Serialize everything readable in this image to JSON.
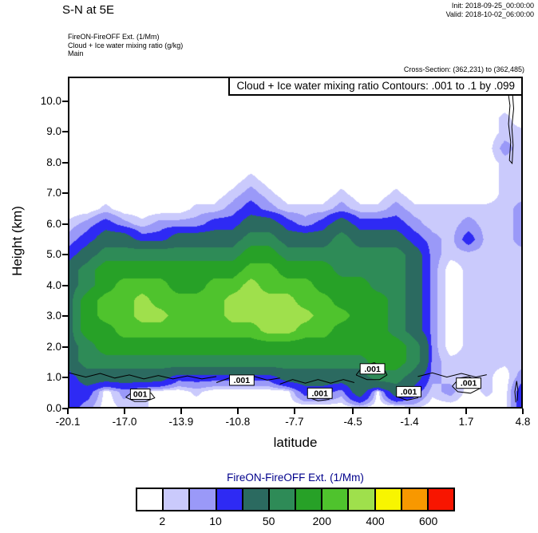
{
  "header": {
    "title": "S-N at 5E",
    "init": "Init: 2018-09-25_00:00:00",
    "valid": "Valid: 2018-10-02_06:00:00",
    "model_lines": [
      "FireON-FireOFF Ext.  (1/Mm)",
      "Cloud + Ice water mixing ratio  (g/kg)",
      "Main"
    ],
    "cross_section": "Cross-Section: (362,231) to (362,485)"
  },
  "plot": {
    "inner_title": "Cloud + Ice water mixing ratio Contours: .001 to .1 by .099",
    "ylabel": "Height (km)",
    "xlabel": "latitude",
    "y_ticks": [
      "10.0",
      "9.0",
      "8.0",
      "7.0",
      "6.0",
      "5.0",
      "4.0",
      "3.0",
      "2.0",
      "1.0",
      "0.0"
    ],
    "x_ticks": [
      "-20.1",
      "-17.0",
      "-13.9",
      "-10.8",
      "-7.7",
      "-4.5",
      "-1.4",
      "1.7",
      "4.8"
    ]
  },
  "colorbar": {
    "title": "FireON-FireOFF Ext.  (1/Mm)",
    "title_color": "#00008b",
    "colors": [
      "#ffffff",
      "#cacafc",
      "#9a99f8",
      "#2e2af4",
      "#2b6a60",
      "#2e8b57",
      "#27a127",
      "#4fc32d",
      "#9fe04c",
      "#f8f500",
      "#f89800",
      "#f81500"
    ],
    "labels": [
      {
        "text": "2",
        "edge": 1
      },
      {
        "text": "10",
        "edge": 3
      },
      {
        "text": "50",
        "edge": 5
      },
      {
        "text": "200",
        "edge": 7
      },
      {
        "text": "400",
        "edge": 9
      },
      {
        "text": "600",
        "edge": 11
      }
    ]
  },
  "chart_data": {
    "type": "filled_contour",
    "title": "Cloud + Ice water mixing ratio Contours: .001 to .1 by .099",
    "field_name": "FireON-FireOFF Ext.",
    "field_units": "1/Mm",
    "xlabel": "latitude",
    "ylabel": "Height (km)",
    "xlim": [
      -20.1,
      4.8
    ],
    "ylim": [
      0,
      10.8
    ],
    "levels": [
      2,
      5,
      10,
      20,
      50,
      100,
      200,
      300,
      400,
      500,
      600
    ],
    "level_colors": [
      "#ffffff",
      "#cacafc",
      "#9a99f8",
      "#2e2af4",
      "#2b6a60",
      "#2e8b57",
      "#27a127",
      "#4fc32d",
      "#9fe04c",
      "#f8f500",
      "#f89800",
      "#f81500"
    ],
    "x": [
      -20.1,
      -19.1,
      -18.1,
      -17.1,
      -16.1,
      -15.1,
      -14.1,
      -13.1,
      -12.1,
      -11.1,
      -10.1,
      -9.1,
      -8.1,
      -7.1,
      -6.1,
      -5.1,
      -4.1,
      -3.1,
      -2.1,
      -1.1,
      -0.1,
      0.9,
      1.9,
      2.9,
      3.9,
      4.8
    ],
    "y": [
      0,
      0.5,
      1,
      1.5,
      2,
      2.5,
      3,
      3.5,
      4,
      4.5,
      5,
      5.5,
      6,
      6.5,
      7,
      7.5,
      8,
      8.5,
      9,
      9.5,
      10,
      10.5
    ],
    "values": [
      [
        14,
        7,
        0,
        3,
        3,
        0,
        0,
        0,
        0,
        0,
        0,
        0,
        0,
        0,
        0,
        0,
        3,
        0,
        0,
        3,
        0,
        0,
        0,
        0,
        0,
        14
      ],
      [
        14,
        14,
        0,
        7,
        3,
        0,
        0,
        3,
        0,
        0,
        0,
        0,
        0,
        14,
        14,
        7,
        30,
        0,
        30,
        14,
        3,
        7,
        0,
        3,
        0,
        14
      ],
      [
        14,
        30,
        30,
        30,
        30,
        30,
        14,
        14,
        14,
        14,
        14,
        14,
        30,
        30,
        30,
        30,
        30,
        70,
        70,
        30,
        7,
        3,
        3,
        3,
        0,
        7
      ],
      [
        30,
        70,
        70,
        70,
        70,
        70,
        70,
        70,
        70,
        70,
        70,
        70,
        70,
        70,
        70,
        70,
        70,
        140,
        140,
        70,
        7,
        3,
        3,
        3,
        3,
        3
      ],
      [
        30,
        70,
        140,
        140,
        140,
        140,
        140,
        140,
        140,
        140,
        140,
        140,
        140,
        140,
        140,
        140,
        140,
        140,
        140,
        70,
        7,
        0,
        3,
        3,
        3,
        3
      ],
      [
        30,
        140,
        140,
        250,
        250,
        250,
        250,
        250,
        250,
        250,
        250,
        340,
        340,
        250,
        250,
        140,
        140,
        140,
        70,
        30,
        7,
        0,
        3,
        3,
        3,
        3
      ],
      [
        30,
        140,
        250,
        250,
        340,
        340,
        250,
        250,
        250,
        340,
        340,
        340,
        340,
        340,
        250,
        250,
        140,
        140,
        70,
        30,
        7,
        0,
        3,
        3,
        3,
        3
      ],
      [
        30,
        140,
        250,
        250,
        340,
        250,
        250,
        250,
        250,
        340,
        340,
        340,
        340,
        250,
        250,
        140,
        140,
        140,
        70,
        30,
        7,
        0,
        3,
        3,
        3,
        3
      ],
      [
        30,
        70,
        140,
        250,
        250,
        250,
        140,
        140,
        250,
        250,
        340,
        250,
        250,
        250,
        140,
        140,
        140,
        70,
        70,
        30,
        7,
        0,
        3,
        3,
        3,
        3
      ],
      [
        30,
        70,
        140,
        140,
        140,
        140,
        140,
        140,
        140,
        140,
        250,
        250,
        140,
        140,
        140,
        70,
        70,
        70,
        70,
        30,
        7,
        0,
        3,
        3,
        3,
        3
      ],
      [
        14,
        30,
        70,
        70,
        70,
        70,
        70,
        70,
        70,
        70,
        140,
        140,
        70,
        70,
        70,
        70,
        70,
        70,
        70,
        30,
        7,
        3,
        3,
        3,
        3,
        3
      ],
      [
        7,
        14,
        30,
        30,
        14,
        14,
        30,
        30,
        30,
        30,
        70,
        70,
        30,
        30,
        30,
        70,
        30,
        30,
        30,
        14,
        7,
        3,
        14,
        3,
        3,
        7
      ],
      [
        3,
        7,
        14,
        7,
        3,
        7,
        7,
        7,
        14,
        14,
        30,
        30,
        14,
        7,
        14,
        30,
        14,
        14,
        14,
        7,
        3,
        3,
        7,
        3,
        3,
        7
      ],
      [
        0,
        0,
        3,
        0,
        0,
        0,
        0,
        3,
        3,
        7,
        14,
        7,
        3,
        3,
        3,
        7,
        3,
        3,
        7,
        3,
        3,
        3,
        3,
        3,
        3,
        7
      ],
      [
        0,
        0,
        0,
        0,
        0,
        0,
        0,
        0,
        0,
        3,
        7,
        3,
        0,
        0,
        0,
        3,
        0,
        0,
        3,
        0,
        0,
        0,
        0,
        0,
        3,
        3
      ],
      [
        0,
        0,
        0,
        0,
        0,
        0,
        0,
        0,
        0,
        0,
        3,
        0,
        0,
        0,
        0,
        0,
        0,
        0,
        0,
        0,
        0,
        0,
        0,
        0,
        3,
        3
      ],
      [
        0,
        0,
        0,
        0,
        0,
        0,
        0,
        0,
        0,
        0,
        0,
        0,
        0,
        0,
        0,
        0,
        0,
        0,
        0,
        0,
        0,
        0,
        0,
        0,
        3,
        3
      ],
      [
        0,
        0,
        0,
        0,
        0,
        0,
        0,
        0,
        0,
        0,
        0,
        0,
        0,
        0,
        0,
        0,
        0,
        0,
        0,
        0,
        0,
        0,
        0,
        0,
        7,
        3
      ],
      [
        0,
        0,
        0,
        0,
        0,
        0,
        0,
        0,
        0,
        0,
        0,
        0,
        0,
        0,
        0,
        0,
        0,
        0,
        0,
        0,
        0,
        0,
        0,
        0,
        3,
        3
      ],
      [
        0,
        0,
        0,
        0,
        0,
        0,
        0,
        0,
        0,
        0,
        0,
        0,
        0,
        0,
        0,
        0,
        0,
        0,
        0,
        0,
        0,
        0,
        0,
        0,
        3,
        0
      ],
      [
        0,
        0,
        0,
        0,
        0,
        0,
        0,
        0,
        0,
        0,
        0,
        0,
        0,
        0,
        0,
        0,
        0,
        0,
        0,
        0,
        0,
        0,
        0,
        0,
        0,
        0
      ],
      [
        0,
        0,
        0,
        0,
        0,
        0,
        0,
        0,
        0,
        0,
        0,
        0,
        0,
        0,
        0,
        0,
        0,
        0,
        0,
        0,
        0,
        0,
        0,
        0,
        0,
        0
      ]
    ],
    "contours": {
      "level": 0.001,
      "units": "g/kg",
      "lines": [
        [
          [
            -20.1,
            1.12
          ],
          [
            -19.2,
            0.98
          ],
          [
            -18.4,
            1.1
          ],
          [
            -17.6,
            0.95
          ],
          [
            -16.8,
            1.05
          ],
          [
            -16.0,
            0.92
          ],
          [
            -15.2,
            1.03
          ],
          [
            -14.4,
            0.92
          ],
          [
            -13.6,
            1.02
          ],
          [
            -12.8,
            0.92
          ],
          [
            -12.0,
            1.0
          ]
        ],
        [
          [
            -17.0,
            0.32
          ],
          [
            -16.6,
            0.5
          ],
          [
            -16.1,
            0.55
          ],
          [
            -15.6,
            0.45
          ],
          [
            -15.4,
            0.3
          ],
          [
            -15.9,
            0.18
          ],
          [
            -16.5,
            0.18
          ],
          [
            -17.0,
            0.32
          ]
        ],
        [
          [
            -12.0,
            0.8
          ],
          [
            -11.3,
            0.95
          ],
          [
            -10.6,
            0.85
          ],
          [
            -9.9,
            1.0
          ],
          [
            -9.2,
            0.88
          ],
          [
            -8.5,
            0.95
          ]
        ],
        [
          [
            -8.5,
            0.75
          ],
          [
            -7.8,
            0.9
          ],
          [
            -7.1,
            0.78
          ],
          [
            -6.4,
            0.9
          ],
          [
            -5.7,
            0.78
          ],
          [
            -5.0,
            0.9
          ],
          [
            -4.4,
            0.8
          ]
        ],
        [
          [
            -7.0,
            0.33
          ],
          [
            -6.6,
            0.52
          ],
          [
            -6.1,
            0.56
          ],
          [
            -5.7,
            0.42
          ],
          [
            -5.8,
            0.25
          ],
          [
            -6.4,
            0.2
          ],
          [
            -7.0,
            0.33
          ]
        ],
        [
          [
            -4.3,
            1.05
          ],
          [
            -3.9,
            1.35
          ],
          [
            -3.3,
            1.45
          ],
          [
            -2.8,
            1.3
          ],
          [
            -2.6,
            1.05
          ],
          [
            -3.0,
            0.9
          ],
          [
            -3.7,
            0.9
          ],
          [
            -4.3,
            1.05
          ]
        ],
        [
          [
            -2.1,
            0.35
          ],
          [
            -1.7,
            0.6
          ],
          [
            -1.2,
            0.65
          ],
          [
            -0.8,
            0.5
          ],
          [
            -0.9,
            0.3
          ],
          [
            -1.5,
            0.22
          ],
          [
            -2.1,
            0.35
          ]
        ],
        [
          [
            -0.9,
            1.0
          ],
          [
            -0.1,
            1.12
          ],
          [
            0.7,
            0.98
          ],
          [
            1.5,
            1.1
          ],
          [
            2.3,
            0.98
          ],
          [
            2.9,
            1.06
          ]
        ],
        [
          [
            1.0,
            0.68
          ],
          [
            1.4,
            0.95
          ],
          [
            1.9,
            1.0
          ],
          [
            2.4,
            0.85
          ],
          [
            2.5,
            0.6
          ],
          [
            2.0,
            0.45
          ],
          [
            1.3,
            0.5
          ],
          [
            1.0,
            0.68
          ]
        ],
        [
          [
            4.05,
            10.45
          ],
          [
            4.18,
            9.9
          ],
          [
            4.1,
            9.3
          ],
          [
            4.22,
            8.7
          ],
          [
            4.15,
            8.1
          ],
          [
            4.3,
            8.0
          ],
          [
            4.35,
            8.6
          ],
          [
            4.28,
            9.2
          ],
          [
            4.38,
            9.8
          ],
          [
            4.3,
            10.45
          ]
        ],
        [
          [
            4.5,
            0.15
          ],
          [
            4.45,
            0.5
          ],
          [
            4.55,
            0.85
          ],
          [
            4.62,
            0.55
          ],
          [
            4.58,
            0.2
          ]
        ]
      ],
      "labels": [
        {
          "x": -16.2,
          "y": 0.42,
          "text": "001"
        },
        {
          "x": -10.6,
          "y": 0.88,
          "text": ".001"
        },
        {
          "x": -6.3,
          "y": 0.45,
          "text": ".001"
        },
        {
          "x": -3.4,
          "y": 1.25,
          "text": ".001"
        },
        {
          "x": -1.4,
          "y": 0.5,
          "text": ".001"
        },
        {
          "x": 1.9,
          "y": 0.78,
          "text": ".001"
        }
      ]
    }
  }
}
